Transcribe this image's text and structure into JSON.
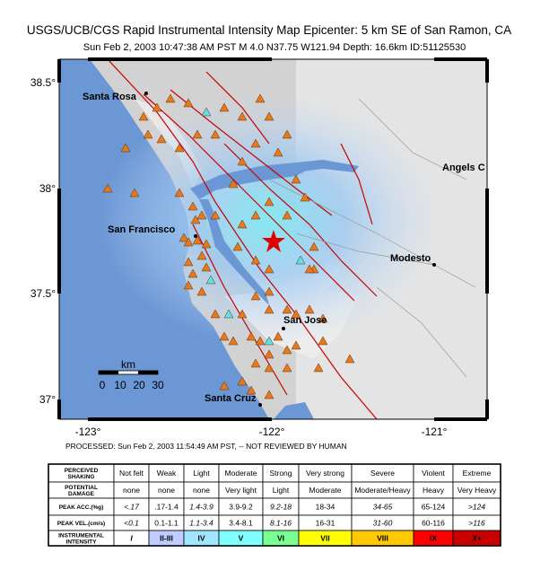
{
  "header": {
    "title": "USGS/UCB/CGS Rapid Instrumental Intensity Map Epicenter:    5 km SE  of San Ramon, CA",
    "subtitle": "Sun Feb  2, 2003 10:47:38 AM PST    M 4.0    N37.75 W121.94    Depth: 16.6km    ID:51125530"
  },
  "map": {
    "lat_labels": [
      "38.5°",
      "38°",
      "37.5°",
      "37°"
    ],
    "lon_labels": [
      "-123°",
      "-122°",
      "-121°"
    ],
    "cities": [
      "Santa Rosa",
      "San Francisco",
      "San Jose",
      "Santa Cruz",
      "Modesto",
      "Angels C"
    ],
    "scale": {
      "unit": "km",
      "labels": [
        "0",
        "10",
        "20",
        "30"
      ]
    }
  },
  "processed": "PROCESSED: Sun Feb 2, 2003 11:54:49 AM PST, -- NOT REVIEWED BY HUMAN",
  "legend": {
    "rows": [
      {
        "label": [
          "PERCEIVED",
          "SHAKING"
        ],
        "cells": [
          "Not felt",
          "Weak",
          "Light",
          "Moderate",
          "Strong",
          "Very strong",
          "Severe",
          "Violent",
          "Extreme"
        ]
      },
      {
        "label": [
          "POTENTIAL",
          "DAMAGE"
        ],
        "cells": [
          "none",
          "none",
          "none",
          "Very light",
          "Light",
          "Moderate",
          "Moderate/Heavy",
          "Heavy",
          "Very Heavy"
        ]
      },
      {
        "label": [
          "PEAK ACC.(%g)"
        ],
        "cells": [
          "<.17",
          ".17-1.4",
          "1.4-3.9",
          "3.9-9.2",
          "9.2-18",
          "18-34",
          "34-65",
          "65-124",
          ">124"
        ]
      },
      {
        "label": [
          "PEAK VEL.(cm/s)"
        ],
        "cells": [
          "<0.1",
          "0.1-1.1",
          "1.1-3.4",
          "3.4-8.1",
          "8.1-16",
          "16-31",
          "31-60",
          "60-116",
          ">116"
        ]
      },
      {
        "label": [
          "INSTRUMENTAL",
          "INTENSITY"
        ],
        "cells": [
          "I",
          "II-III",
          "IV",
          "V",
          "VI",
          "VII",
          "VIII",
          "IX",
          "X+"
        ]
      }
    ],
    "intensity_colors": [
      "#ffffff",
      "#bfccff",
      "#a0e6ff",
      "#80ffff",
      "#7aff93",
      "#ffff00",
      "#ffc800",
      "#ff0000",
      "#c80000"
    ]
  }
}
